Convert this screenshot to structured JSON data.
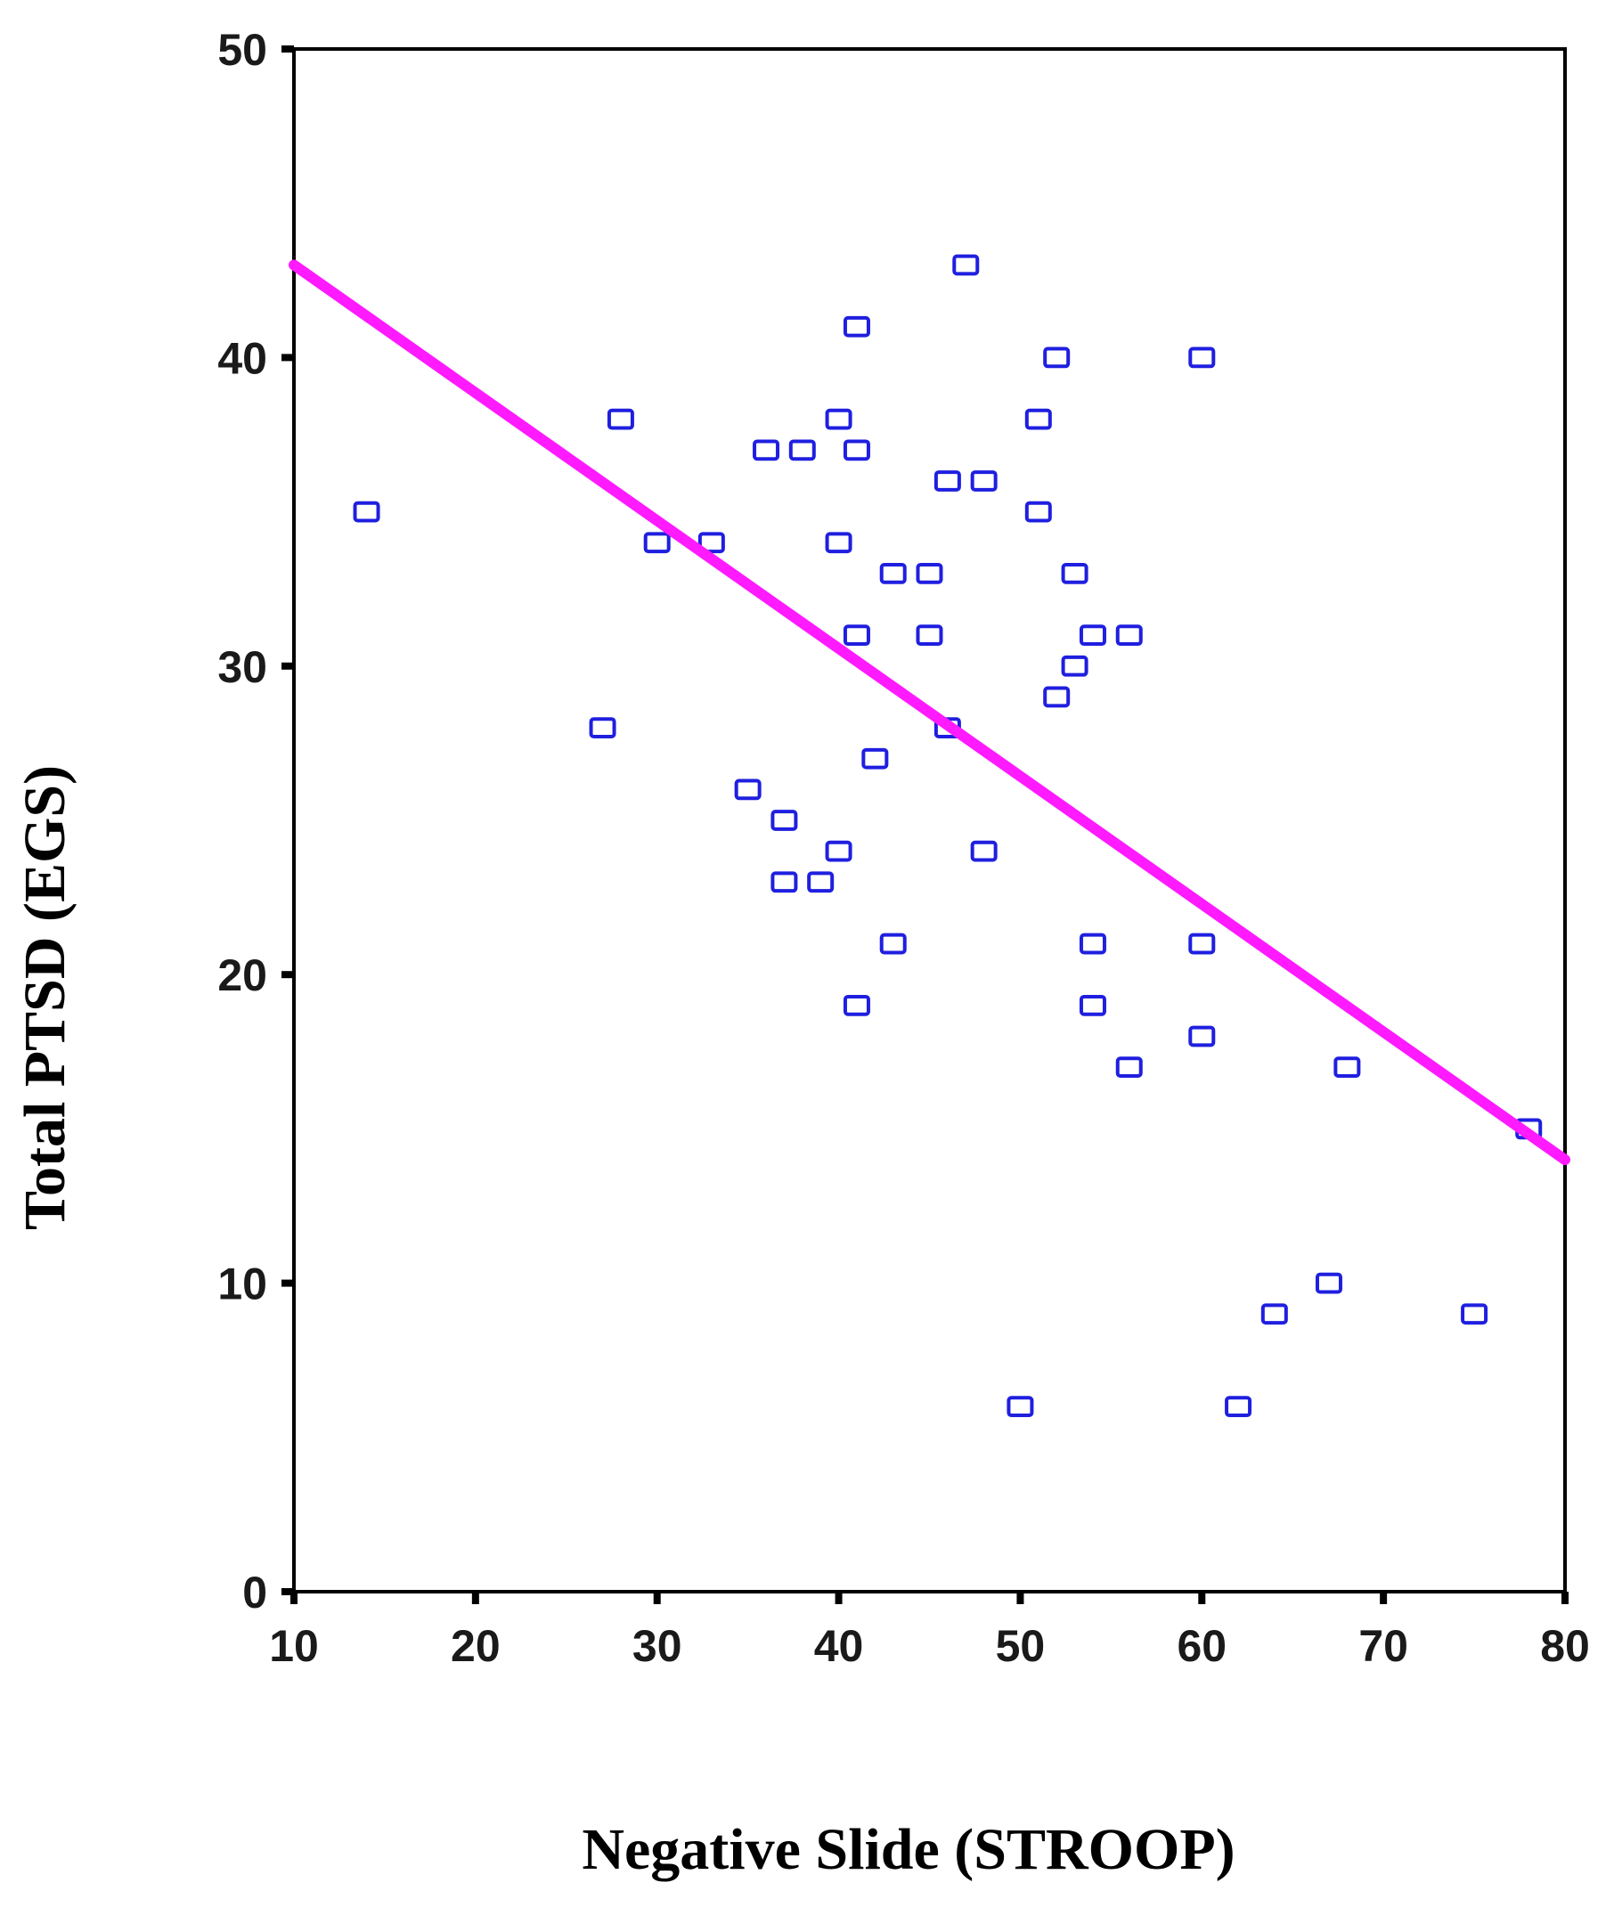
{
  "chart_data": {
    "type": "scatter",
    "title": "",
    "xlabel": "Negative Slide (STROOP)",
    "ylabel": "Total PTSD (EGS)",
    "xlim": [
      10,
      80
    ],
    "ylim": [
      0,
      50
    ],
    "x_ticks": [
      10,
      20,
      30,
      40,
      50,
      60,
      70,
      80
    ],
    "y_ticks": [
      0,
      10,
      20,
      30,
      40,
      50
    ],
    "grid": false,
    "marker": "open-square",
    "colors": {
      "points": "#1f1fe0",
      "fit_line": "#ff1aff",
      "axes": "#000000"
    },
    "points": [
      {
        "x": 14,
        "y": 35
      },
      {
        "x": 27,
        "y": 28
      },
      {
        "x": 28,
        "y": 38
      },
      {
        "x": 30,
        "y": 34
      },
      {
        "x": 33,
        "y": 34
      },
      {
        "x": 35,
        "y": 26
      },
      {
        "x": 36,
        "y": 37
      },
      {
        "x": 37,
        "y": 25
      },
      {
        "x": 37,
        "y": 23
      },
      {
        "x": 38,
        "y": 37
      },
      {
        "x": 39,
        "y": 23
      },
      {
        "x": 40,
        "y": 38
      },
      {
        "x": 40,
        "y": 34
      },
      {
        "x": 40,
        "y": 24
      },
      {
        "x": 41,
        "y": 41
      },
      {
        "x": 41,
        "y": 37
      },
      {
        "x": 41,
        "y": 31
      },
      {
        "x": 41,
        "y": 19
      },
      {
        "x": 42,
        "y": 27
      },
      {
        "x": 43,
        "y": 33
      },
      {
        "x": 43,
        "y": 21
      },
      {
        "x": 45,
        "y": 33
      },
      {
        "x": 45,
        "y": 31
      },
      {
        "x": 46,
        "y": 36
      },
      {
        "x": 46,
        "y": 28
      },
      {
        "x": 47,
        "y": 43
      },
      {
        "x": 48,
        "y": 36
      },
      {
        "x": 48,
        "y": 24
      },
      {
        "x": 50,
        "y": 6
      },
      {
        "x": 51,
        "y": 38
      },
      {
        "x": 51,
        "y": 35
      },
      {
        "x": 52,
        "y": 40
      },
      {
        "x": 52,
        "y": 29
      },
      {
        "x": 53,
        "y": 33
      },
      {
        "x": 53,
        "y": 30
      },
      {
        "x": 54,
        "y": 31
      },
      {
        "x": 54,
        "y": 21
      },
      {
        "x": 54,
        "y": 19
      },
      {
        "x": 56,
        "y": 31
      },
      {
        "x": 56,
        "y": 17
      },
      {
        "x": 60,
        "y": 40
      },
      {
        "x": 60,
        "y": 21
      },
      {
        "x": 60,
        "y": 18
      },
      {
        "x": 62,
        "y": 6
      },
      {
        "x": 64,
        "y": 9
      },
      {
        "x": 67,
        "y": 10
      },
      {
        "x": 68,
        "y": 17
      },
      {
        "x": 75,
        "y": 9
      },
      {
        "x": 78,
        "y": 15
      }
    ],
    "fit_line": {
      "x": [
        10,
        80
      ],
      "y": [
        43,
        14
      ]
    }
  }
}
